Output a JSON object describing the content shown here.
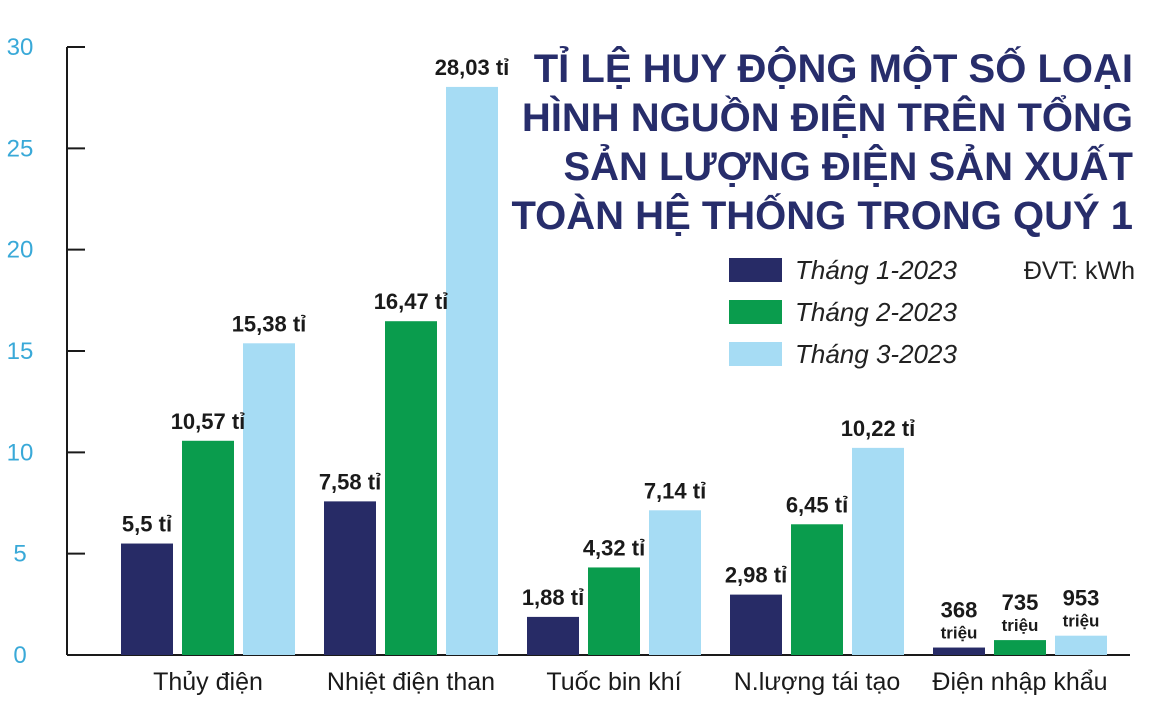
{
  "chart_data": {
    "type": "bar",
    "title": [
      "TỈ LỆ HUY ĐỘNG MỘT SỐ LOẠI",
      "HÌNH NGUỒN ĐIỆN TRÊN TỔNG",
      "SẢN LƯỢNG ĐIỆN SẢN XUẤT",
      "TOÀN HỆ THỐNG TRONG QUÝ 1"
    ],
    "unit_note": "ĐVT: kWh",
    "categories": [
      "Thủy điện",
      "Nhiệt điện than",
      "Tuốc bin khí",
      "N.lượng tái tạo",
      "Điện nhập khẩu"
    ],
    "ylim": [
      0,
      30
    ],
    "yticks": [
      "0",
      "5",
      "10",
      "15",
      "20",
      "25",
      "30"
    ],
    "grid": false,
    "legend_position": "top-right",
    "series": [
      {
        "name": "Tháng 1-2023",
        "color": "#272b66",
        "values": [
          5.5,
          7.58,
          1.88,
          2.98,
          0.368
        ],
        "labels": [
          [
            "5,5 tỉ"
          ],
          [
            "7,58 tỉ"
          ],
          [
            "1,88 tỉ"
          ],
          [
            "2,98 tỉ"
          ],
          [
            "368",
            "triệu"
          ]
        ]
      },
      {
        "name": "Tháng 2-2023",
        "color": "#0a9c4d",
        "values": [
          10.57,
          16.47,
          4.32,
          6.45,
          0.735
        ],
        "labels": [
          [
            "10,57 tỉ"
          ],
          [
            "16,47 tỉ"
          ],
          [
            "4,32 tỉ"
          ],
          [
            "6,45 tỉ"
          ],
          [
            "735",
            "triệu"
          ]
        ]
      },
      {
        "name": "Tháng 3-2023",
        "color": "#a6dcf4",
        "values": [
          15.38,
          28.03,
          7.14,
          10.22,
          0.953
        ],
        "labels": [
          [
            "15,38 tỉ"
          ],
          [
            "28,03 tỉ"
          ],
          [
            "7,14 tỉ"
          ],
          [
            "10,22 tỉ"
          ],
          [
            "953",
            "triệu"
          ]
        ]
      }
    ]
  }
}
